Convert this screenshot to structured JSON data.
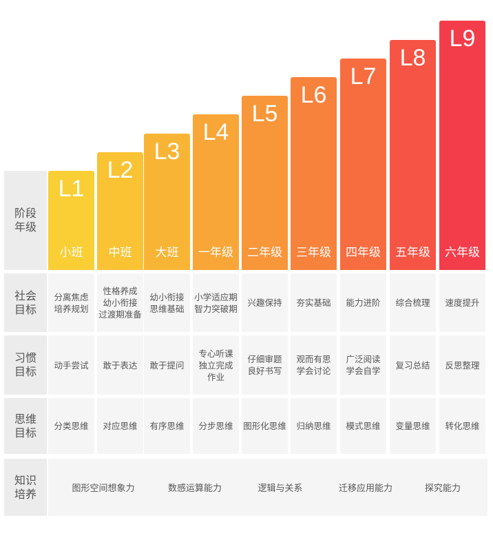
{
  "row_headers": {
    "stage": "阶段\n年级",
    "social": "社会\n目标",
    "habit": "习惯\n目标",
    "thinking": "思维\n目标",
    "knowledge": "知识\n培养"
  },
  "levels": [
    {
      "level": "L1",
      "grade": "小班",
      "social": "分离焦虑\n培养规划",
      "habit": "动手尝试",
      "thinking": "分类思维",
      "color": "#f9cf35"
    },
    {
      "level": "L2",
      "grade": "中班",
      "social": "性格养成\n幼小衔接\n过渡期准备",
      "habit": "敢于表达",
      "thinking": "对应思维",
      "color": "#f9c333"
    },
    {
      "level": "L3",
      "grade": "大班",
      "social": "幼小衔接\n思维基础",
      "habit": "敢于提问",
      "thinking": "有序思维",
      "color": "#f8b535"
    },
    {
      "level": "L4",
      "grade": "一年级",
      "social": "小学适应期\n智力突破期",
      "habit": "专心听课\n独立完成\n作业",
      "thinking": "分步思维",
      "color": "#f8a637"
    },
    {
      "level": "L5",
      "grade": "二年级",
      "social": "兴趣保持",
      "habit": "仔细审题\n良好书写",
      "thinking": "图形化思维",
      "color": "#f8963a"
    },
    {
      "level": "L6",
      "grade": "三年级",
      "social": "夯实基础",
      "habit": "观而有思\n学会讨论",
      "thinking": "归纳思维",
      "color": "#f7823c"
    },
    {
      "level": "L7",
      "grade": "四年级",
      "social": "能力进阶",
      "habit": "广泛阅读\n学会自学",
      "thinking": "模式思维",
      "color": "#f76d40"
    },
    {
      "level": "L8",
      "grade": "五年级",
      "social": "综合梳理",
      "habit": "复习总结",
      "thinking": "变量思维",
      "color": "#f65444"
    },
    {
      "level": "L9",
      "grade": "六年级",
      "social": "速度提升",
      "habit": "反思整理",
      "thinking": "转化思维",
      "color": "#f43d4a"
    }
  ],
  "knowledge": [
    "图形空间想象力",
    "数感运算能力",
    "逻辑与关系",
    "迁移应用能力",
    "探究能力"
  ]
}
